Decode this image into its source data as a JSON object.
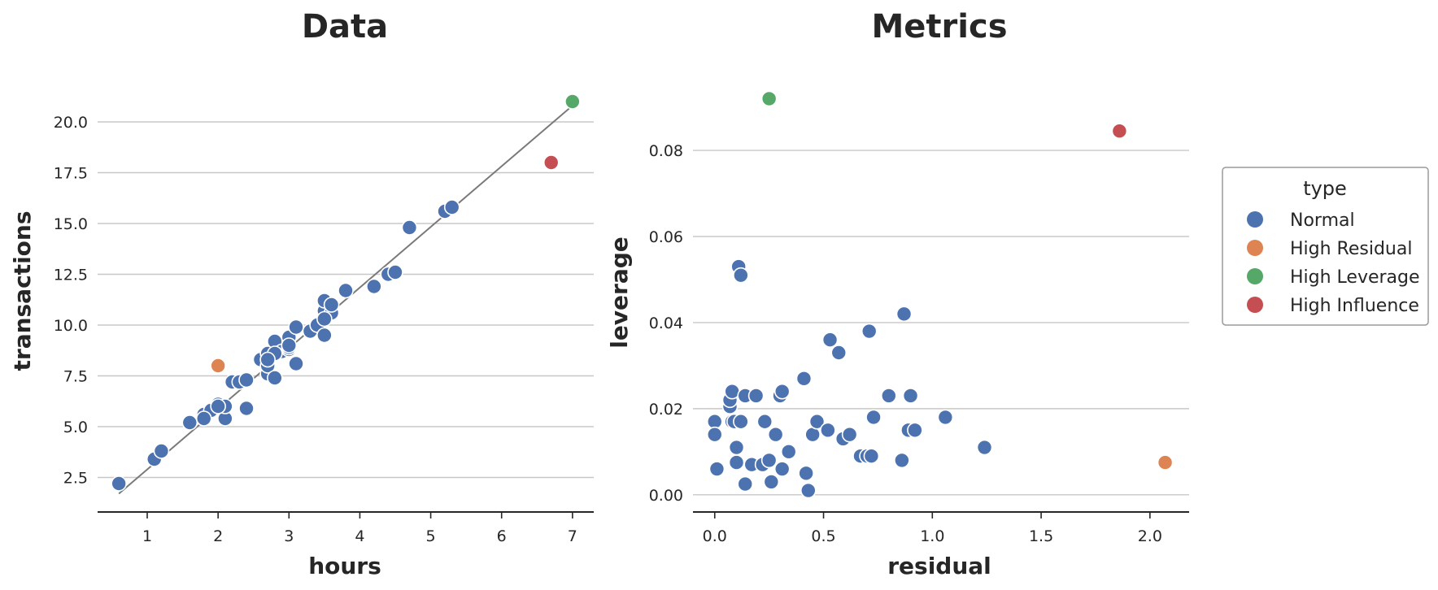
{
  "chart_data": [
    {
      "type": "scatter",
      "title": "Data",
      "xlabel": "hours",
      "ylabel": "transactions",
      "xlim": [
        0.3,
        7.3
      ],
      "ylim": [
        0.8,
        22.2
      ],
      "xticks": [
        1,
        2,
        3,
        4,
        5,
        6,
        7
      ],
      "xtick_labels": [
        "1",
        "2",
        "3",
        "4",
        "5",
        "6",
        "7"
      ],
      "yticks": [
        2.5,
        5.0,
        7.5,
        10.0,
        12.5,
        15.0,
        17.5,
        20.0
      ],
      "ytick_labels": [
        "2.5",
        "5.0",
        "7.5",
        "10.0",
        "12.5",
        "15.0",
        "17.5",
        "20.0"
      ],
      "grid": "horizontal",
      "fit_line": {
        "x": [
          0.6,
          7.0
        ],
        "y": [
          1.7,
          20.8
        ]
      },
      "series": [
        {
          "name": "Normal",
          "x": [
            0.6,
            1.1,
            1.2,
            1.6,
            1.8,
            1.9,
            2.0,
            2.1,
            2.1,
            2.2,
            2.3,
            2.4,
            2.4,
            2.6,
            2.7,
            2.7,
            2.7,
            2.7,
            2.8,
            2.8,
            2.9,
            3.0,
            3.0,
            3.0,
            3.1,
            3.1,
            3.3,
            3.4,
            3.5,
            3.5,
            3.5,
            3.6,
            3.6,
            3.8,
            4.2,
            4.4,
            4.5,
            4.7,
            5.2,
            5.3,
            2.0,
            1.8,
            3.0,
            2.8,
            2.7,
            3.5
          ],
          "y": [
            2.2,
            3.4,
            3.8,
            5.2,
            5.6,
            5.8,
            6.1,
            5.4,
            6.0,
            7.2,
            7.2,
            5.9,
            7.3,
            8.3,
            7.6,
            8.0,
            8.3,
            8.6,
            7.4,
            9.2,
            8.7,
            8.8,
            9.4,
            8.9,
            8.1,
            9.9,
            9.7,
            10.0,
            9.5,
            10.7,
            11.2,
            10.6,
            11.0,
            11.7,
            11.9,
            12.5,
            12.6,
            14.8,
            15.6,
            15.8,
            6.0,
            5.4,
            9.0,
            8.6,
            8.3,
            10.3
          ]
        },
        {
          "name": "High Residual",
          "x": [
            2.0
          ],
          "y": [
            8.0
          ]
        },
        {
          "name": "High Leverage",
          "x": [
            7.0
          ],
          "y": [
            21.0
          ]
        },
        {
          "name": "High Influence",
          "x": [
            6.7
          ],
          "y": [
            18.0
          ]
        }
      ]
    },
    {
      "type": "scatter",
      "title": "Metrics",
      "xlabel": "residual",
      "ylabel": "leverage",
      "xlim": [
        -0.1,
        2.18
      ],
      "ylim": [
        -0.004,
        0.097
      ],
      "xticks": [
        0.0,
        0.5,
        1.0,
        1.5,
        2.0
      ],
      "xtick_labels": [
        "0.0",
        "0.5",
        "1.0",
        "1.5",
        "2.0"
      ],
      "yticks": [
        0.0,
        0.02,
        0.04,
        0.06,
        0.08
      ],
      "ytick_labels": [
        "0.00",
        "0.02",
        "0.04",
        "0.06",
        "0.08"
      ],
      "grid": "horizontal",
      "series": [
        {
          "name": "Normal",
          "x": [
            0.0,
            0.0,
            0.01,
            0.07,
            0.07,
            0.08,
            0.08,
            0.09,
            0.1,
            0.1,
            0.11,
            0.12,
            0.12,
            0.14,
            0.14,
            0.17,
            0.19,
            0.22,
            0.23,
            0.25,
            0.26,
            0.28,
            0.3,
            0.31,
            0.31,
            0.34,
            0.41,
            0.42,
            0.43,
            0.45,
            0.47,
            0.52,
            0.53,
            0.57,
            0.59,
            0.62,
            0.67,
            0.7,
            0.71,
            0.72,
            0.73,
            0.8,
            0.86,
            0.87,
            0.89,
            0.9,
            0.92,
            1.06,
            1.24
          ],
          "y": [
            0.017,
            0.014,
            0.006,
            0.0205,
            0.022,
            0.024,
            0.017,
            0.017,
            0.011,
            0.0075,
            0.053,
            0.017,
            0.051,
            0.0025,
            0.023,
            0.007,
            0.023,
            0.007,
            0.017,
            0.008,
            0.003,
            0.014,
            0.023,
            0.024,
            0.006,
            0.01,
            0.027,
            0.005,
            0.001,
            0.014,
            0.017,
            0.015,
            0.036,
            0.033,
            0.013,
            0.014,
            0.009,
            0.009,
            0.038,
            0.009,
            0.018,
            0.023,
            0.008,
            0.042,
            0.015,
            0.023,
            0.015,
            0.018,
            0.011
          ]
        },
        {
          "name": "High Residual",
          "x": [
            2.07
          ],
          "y": [
            0.0075
          ]
        },
        {
          "name": "High Leverage",
          "x": [
            0.25
          ],
          "y": [
            0.092
          ]
        },
        {
          "name": "High Influence",
          "x": [
            1.86
          ],
          "y": [
            0.0845
          ]
        }
      ]
    }
  ],
  "legend": {
    "title": "type",
    "placement": "outside-right",
    "entries": [
      {
        "label": "Normal",
        "color": "#4c72b0"
      },
      {
        "label": "High Residual",
        "color": "#dd8452"
      },
      {
        "label": "High Leverage",
        "color": "#55a868"
      },
      {
        "label": "High Influence",
        "color": "#c44e52"
      }
    ]
  }
}
